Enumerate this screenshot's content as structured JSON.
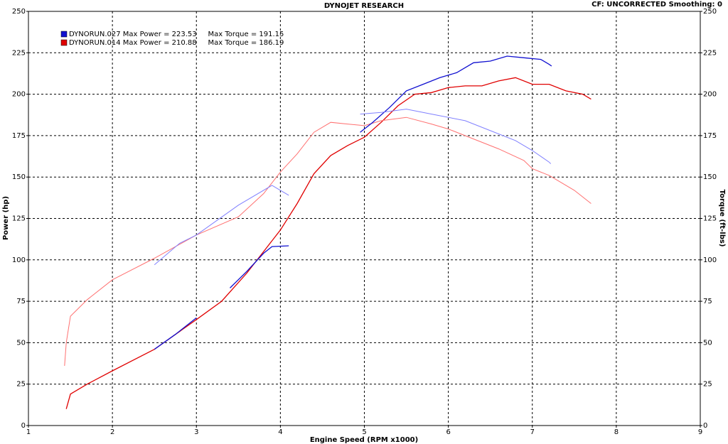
{
  "chart_data": {
    "type": "line",
    "title": "DYNOJET RESEARCH",
    "subtitle": "CF: UNCORRECTED  Smoothing: 0",
    "xlabel": "Engine Speed (RPM x1000)",
    "ylabel": "Power (hp)",
    "y2label": "Torque (ft-lbs)",
    "legend_lines": [
      "DYNORUN.027 Max Power = 223.53     Max Torque = 191.15",
      "DYNORUN.014 Max Power = 210.88     Max Torque = 186.19"
    ],
    "xlim": [
      1,
      9
    ],
    "xticks": [
      1,
      2,
      3,
      4,
      5,
      6,
      7,
      8,
      9
    ],
    "ylim": [
      0,
      250
    ],
    "yticks": [
      0,
      25,
      50,
      75,
      100,
      125,
      150,
      175,
      200,
      225,
      250
    ],
    "y2lim": [
      0,
      250
    ],
    "y2ticks": [
      0,
      25,
      50,
      75,
      100,
      125,
      150,
      175,
      200,
      225,
      250
    ],
    "grid": true,
    "series": [
      {
        "color": "#e00000",
        "legend": 1,
        "x": [
          1.45,
          1.5,
          1.7,
          2,
          2.5,
          3,
          3.3,
          3.6,
          3.8,
          4,
          4.2,
          4.4,
          4.6,
          4.8,
          5,
          5.2,
          5.4,
          5.6,
          5.8,
          6,
          6.2,
          6.4,
          6.6,
          6.8,
          7,
          7.2,
          7.4,
          7.6,
          7.7
        ],
        "values": [
          10,
          19,
          25,
          33,
          46,
          64,
          75,
          92,
          105,
          118,
          134,
          152,
          163,
          169,
          174,
          183,
          193,
          200,
          201,
          204,
          205,
          205,
          208,
          210,
          206,
          206,
          202,
          200,
          197
        ]
      },
      {
        "color": "#ff7070",
        "axis": "y2",
        "x": [
          1.43,
          1.45,
          1.5,
          1.7,
          2,
          2.5,
          3,
          3.5,
          3.8,
          4,
          4.2,
          4.4,
          4.6,
          4.8,
          5,
          5.2,
          5.5,
          5.8,
          6,
          6.3,
          6.6,
          6.9,
          7,
          7.2,
          7.5,
          7.7
        ],
        "values": [
          36,
          50,
          66,
          76,
          88,
          101,
          115,
          126,
          140,
          153,
          164,
          177,
          183,
          182,
          181,
          184,
          186,
          182,
          179,
          173,
          167,
          160,
          155,
          151,
          142,
          134
        ]
      },
      {
        "color": "#1010d0",
        "legend": 0,
        "x": [
          2.5,
          2.75,
          3,
          null,
          3.4,
          3.6,
          3.8,
          3.9,
          4.1,
          null,
          4.95,
          5.1,
          5.3,
          5.5,
          5.7,
          5.9,
          6.1,
          6.3,
          6.5,
          6.7,
          6.9,
          7.1,
          7.2,
          7.23
        ],
        "values": [
          46,
          55,
          65,
          null,
          83,
          93,
          104,
          108,
          108.5,
          null,
          177,
          183,
          192,
          202,
          206,
          210,
          213,
          219,
          220,
          223,
          222,
          221,
          218,
          217
        ]
      },
      {
        "color": "#8080ff",
        "axis": "y2",
        "x": [
          2.5,
          2.8,
          3,
          3.5,
          3.9,
          4.1,
          null,
          4.95,
          5.2,
          5.5,
          5.8,
          6.2,
          6.5,
          6.8,
          7,
          7.2,
          7.22
        ],
        "values": [
          97,
          110,
          115,
          133,
          145,
          139,
          null,
          188,
          189,
          191,
          188,
          184,
          178,
          172,
          166,
          159,
          158
        ]
      }
    ]
  }
}
